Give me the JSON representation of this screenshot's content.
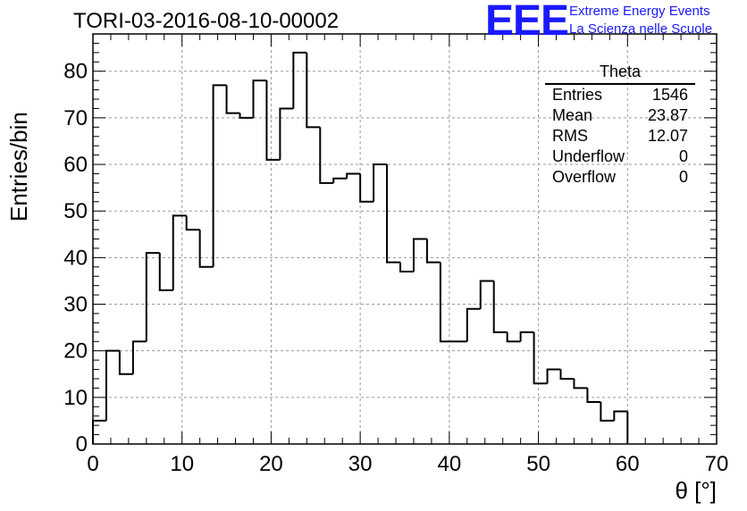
{
  "chart_data": {
    "type": "histogram",
    "title": "TORI-03-2016-08-10-00002",
    "xlabel": "θ [°]",
    "ylabel": "Entries/bin",
    "xlim": [
      0,
      70
    ],
    "ylim": [
      0,
      88
    ],
    "bin_width": 1.5,
    "bin_start": 0,
    "values": [
      5,
      20,
      15,
      22,
      41,
      33,
      49,
      46,
      38,
      77,
      71,
      70,
      78,
      61,
      72,
      84,
      68,
      56,
      57,
      58,
      52,
      60,
      39,
      37,
      44,
      39,
      22,
      22,
      29,
      35,
      24,
      22,
      24,
      13,
      16,
      14,
      12,
      9,
      5,
      7
    ],
    "xticks": [
      "0",
      "10",
      "20",
      "30",
      "40",
      "50",
      "60",
      "70"
    ],
    "yticks": [
      "0",
      "10",
      "20",
      "30",
      "40",
      "50",
      "60",
      "70",
      "80"
    ],
    "grid": true
  },
  "stats_box": {
    "title": "Theta",
    "rows": [
      {
        "label": "Entries",
        "value": "1546"
      },
      {
        "label": "Mean",
        "value": "23.87"
      },
      {
        "label": "RMS",
        "value": "12.07"
      },
      {
        "label": "Underflow",
        "value": "0"
      },
      {
        "label": "Overflow",
        "value": "0"
      }
    ]
  },
  "logo": {
    "mark": "EEE",
    "line1": "Extreme Energy Events",
    "line2": "La Scienza nelle Scuole"
  },
  "colors": {
    "logo": "#1a1aff",
    "line": "#000000",
    "grid": "#999999"
  }
}
